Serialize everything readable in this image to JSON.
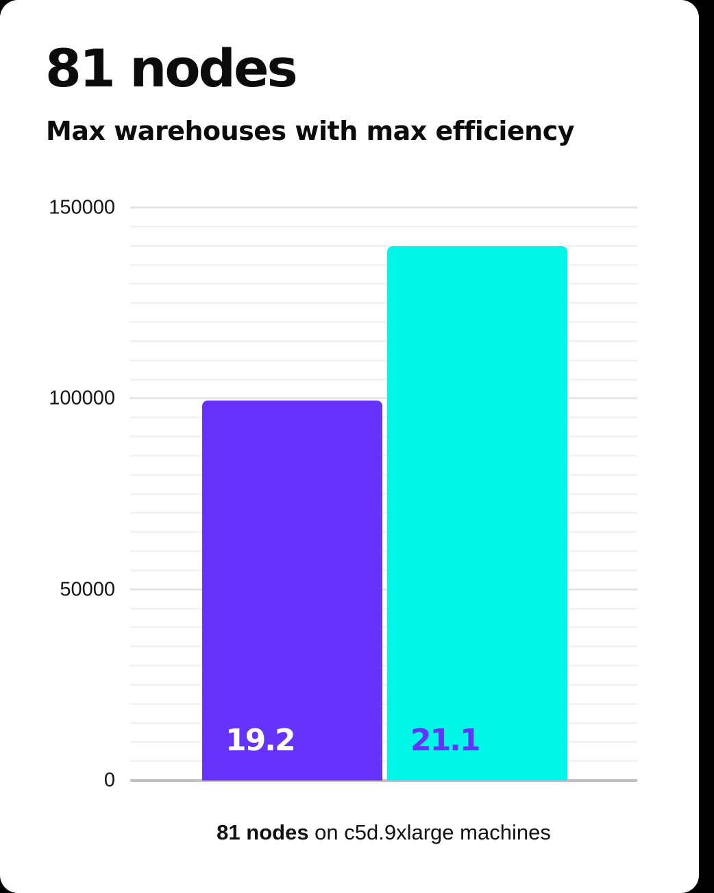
{
  "page": {
    "background_color": "#000000",
    "card_color": "#ffffff"
  },
  "header": {
    "title": "81 nodes",
    "subtitle": "Max warehouses with max efficiency"
  },
  "chart_data": {
    "type": "bar",
    "title": "81 nodes",
    "subtitle": "Max warehouses with max efficiency",
    "categories": [
      "19.2",
      "21.1"
    ],
    "bars": [
      {
        "label": "19.2",
        "value": 99500,
        "color": "#6633fb",
        "label_color": "#ffffff"
      },
      {
        "label": "21.1",
        "value": 140000,
        "color": "#00f7e8",
        "label_color": "#6633fb"
      }
    ],
    "ylabel": "",
    "xlabel": "",
    "ylim": [
      0,
      150000
    ],
    "yticks": [
      0,
      50000,
      100000,
      150000
    ],
    "minor_tick_step": 5000,
    "grid": "horizontal",
    "legend": "none",
    "caption": "81 nodes on c5d.9xlarge machines"
  },
  "caption": {
    "bold_text": "81 nodes",
    "regular_text": " on c5d.9xlarge machines"
  },
  "colors": {
    "bar_purple": "#6633fb",
    "bar_cyan": "#00f7e8",
    "axis_line": "#c2c2c2",
    "grid_major": "#e5e5e5",
    "grid_minor": "#f3f3f3",
    "text": "#0b0b0b"
  }
}
